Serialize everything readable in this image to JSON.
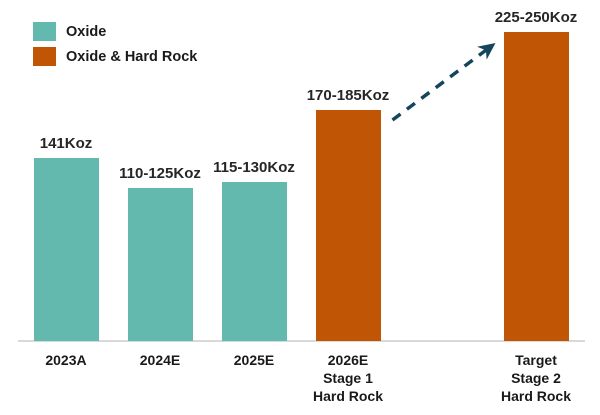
{
  "chart_data": {
    "type": "bar",
    "title": "",
    "unit": "Koz",
    "legend_position": "top-left",
    "grid": false,
    "ylim": [
      0,
      260
    ],
    "text_color": "#262626",
    "axis_line_color": "#d9d9d9",
    "legend": [
      {
        "label": "Oxide",
        "color": "#63b9ae"
      },
      {
        "label": "Oxide & Hard Rock",
        "color": "#c05505"
      }
    ],
    "bars": [
      {
        "category_lines": [
          "2023A"
        ],
        "value_label": "141Koz",
        "value": 141,
        "series": "Oxide",
        "slot": 0
      },
      {
        "category_lines": [
          "2024E"
        ],
        "value_label": "110-125Koz",
        "value": 117.5,
        "series": "Oxide",
        "slot": 1
      },
      {
        "category_lines": [
          "2025E"
        ],
        "value_label": "115-130Koz",
        "value": 122.5,
        "series": "Oxide",
        "slot": 2
      },
      {
        "category_lines": [
          "2026E",
          "Stage 1",
          "Hard Rock"
        ],
        "value_label": "170-185Koz",
        "value": 177.5,
        "series": "Oxide & Hard Rock",
        "slot": 3
      },
      {
        "category_lines": [
          "Target",
          "Stage 2",
          "Hard Rock"
        ],
        "value_label": "225-250Koz",
        "value": 237.5,
        "series": "Oxide & Hard Rock",
        "slot": 5
      }
    ],
    "annotation": {
      "type": "dashed-arrow",
      "from_category": "2026E Stage 1 Hard Rock",
      "to_category": "Target Stage 2 Hard Rock",
      "color": "#15455c"
    }
  }
}
